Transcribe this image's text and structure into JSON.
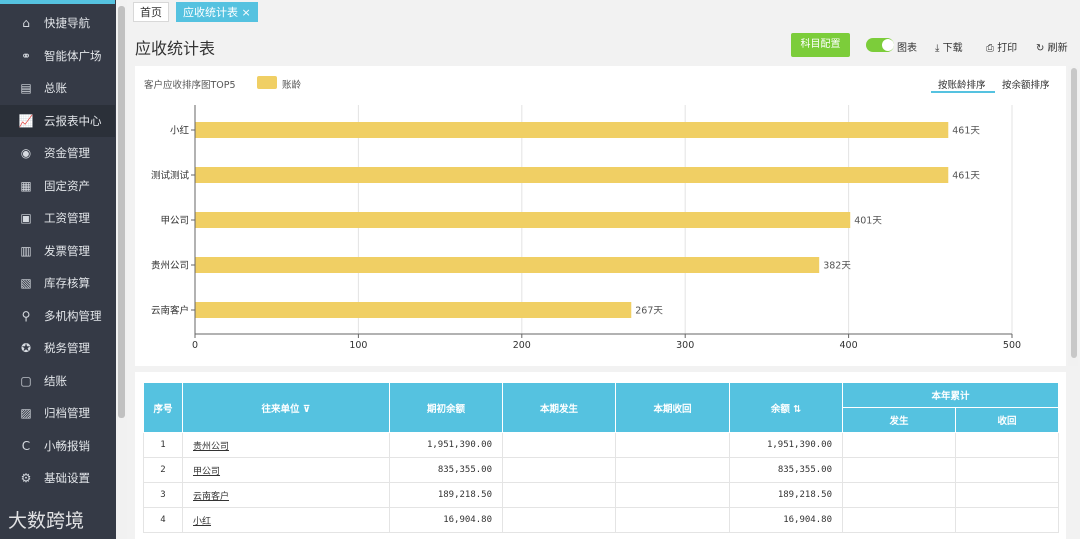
{
  "sidebar": {
    "items": [
      {
        "icon": "home-icon",
        "glyph": "⌂",
        "label": "快捷导航"
      },
      {
        "icon": "nodes-icon",
        "glyph": "⚭",
        "label": "智能体广场"
      },
      {
        "icon": "ledger-icon",
        "glyph": "▤",
        "label": "总账"
      },
      {
        "icon": "chart-icon",
        "glyph": "📈",
        "label": "云报表中心",
        "active": true
      },
      {
        "icon": "money-icon",
        "glyph": "◉",
        "label": "资金管理"
      },
      {
        "icon": "asset-icon",
        "glyph": "▦",
        "label": "固定资产"
      },
      {
        "icon": "salary-icon",
        "glyph": "▣",
        "label": "工资管理"
      },
      {
        "icon": "invoice-icon",
        "glyph": "▥",
        "label": "发票管理"
      },
      {
        "icon": "inventory-icon",
        "glyph": "▧",
        "label": "库存核算"
      },
      {
        "icon": "org-icon",
        "glyph": "⚲",
        "label": "多机构管理"
      },
      {
        "icon": "tax-icon",
        "glyph": "✪",
        "label": "税务管理"
      },
      {
        "icon": "close-period-icon",
        "glyph": "▢",
        "label": "结账"
      },
      {
        "icon": "archive-icon",
        "glyph": "▨",
        "label": "归档管理"
      },
      {
        "icon": "expense-icon",
        "glyph": "C",
        "label": "小畅报销"
      },
      {
        "icon": "settings-icon",
        "glyph": "⚙",
        "label": "基础设置"
      }
    ]
  },
  "watermark": "大数跨境",
  "tabs": [
    {
      "label": "首页"
    },
    {
      "label": "应收统计表",
      "close": "×"
    }
  ],
  "header": {
    "title": "应收统计表",
    "config_button": "科目配置",
    "toggle_label": "图表",
    "download": "下载",
    "print": "打印",
    "refresh": "刷新"
  },
  "chart_data": {
    "type": "bar",
    "orientation": "horizontal",
    "title": "客户应收排序图TOP5",
    "series": [
      {
        "name": "账龄",
        "values": [
          461,
          461,
          401,
          382,
          267
        ],
        "color": "#f0cf64"
      }
    ],
    "categories": [
      "小红",
      "测试测试",
      "甲公司",
      "贵州公司",
      "云南客户"
    ],
    "value_labels": [
      "461天",
      "461天",
      "401天",
      "382天",
      "267天"
    ],
    "xlim": [
      0,
      500
    ],
    "xticks": [
      0,
      100,
      200,
      300,
      400,
      500
    ],
    "grid": true,
    "legend": "top-left"
  },
  "sort": {
    "by_age": "按账龄排序",
    "by_balance": "按余额排序"
  },
  "table": {
    "headers": {
      "seq": "序号",
      "party": "往来单位",
      "opening": "期初余额",
      "occur": "本期发生",
      "recover": "本期收回",
      "balance": "余额",
      "ytd": "本年累计",
      "ytd_occur": "发生",
      "ytd_recover": "收回"
    },
    "rows": [
      {
        "seq": "1",
        "party": "贵州公司",
        "opening": "1,951,390.00",
        "occur": "",
        "recover": "",
        "balance": "1,951,390.00",
        "ytd_occur": "",
        "ytd_recover": ""
      },
      {
        "seq": "2",
        "party": "甲公司",
        "opening": "835,355.00",
        "occur": "",
        "recover": "",
        "balance": "835,355.00",
        "ytd_occur": "",
        "ytd_recover": ""
      },
      {
        "seq": "3",
        "party": "云南客户",
        "opening": "189,218.50",
        "occur": "",
        "recover": "",
        "balance": "189,218.50",
        "ytd_occur": "",
        "ytd_recover": ""
      },
      {
        "seq": "4",
        "party": "小红",
        "opening": "16,904.80",
        "occur": "",
        "recover": "",
        "balance": "16,904.80",
        "ytd_occur": "",
        "ytd_recover": ""
      }
    ]
  }
}
